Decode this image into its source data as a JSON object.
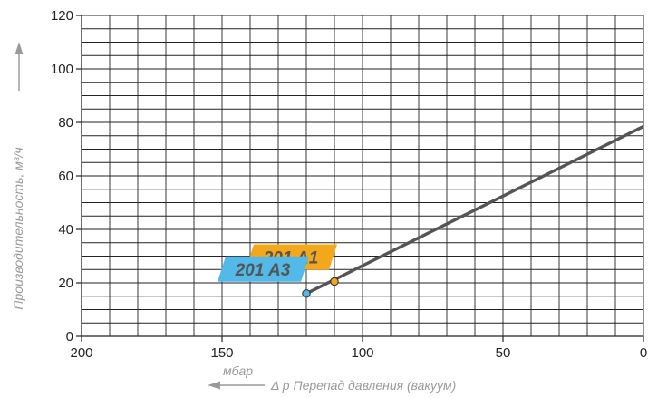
{
  "chart_data": {
    "type": "line",
    "title": "",
    "xlabel": "Δ p Перепад давления (вакуум)",
    "xunit": "мбар",
    "ylabel": "Производительность, м³/ч",
    "xlim": [
      200,
      0
    ],
    "ylim": [
      0,
      120
    ],
    "x_ticks": [
      200,
      150,
      100,
      50,
      0
    ],
    "y_ticks": [
      0,
      20,
      40,
      60,
      80,
      100,
      120
    ],
    "grid": true,
    "series": [
      {
        "name": "",
        "color": "#555555",
        "x": [
          120,
          0
        ],
        "y": [
          16,
          78.5
        ]
      }
    ],
    "markers": [
      {
        "label": "201 A1",
        "x": 110,
        "y": 20.5,
        "color": "#f3a81b",
        "text_color": "#555555"
      },
      {
        "label": "201 A3",
        "x": 120,
        "y": 16,
        "color": "#52b9e8",
        "text_color": "#555555"
      }
    ]
  }
}
